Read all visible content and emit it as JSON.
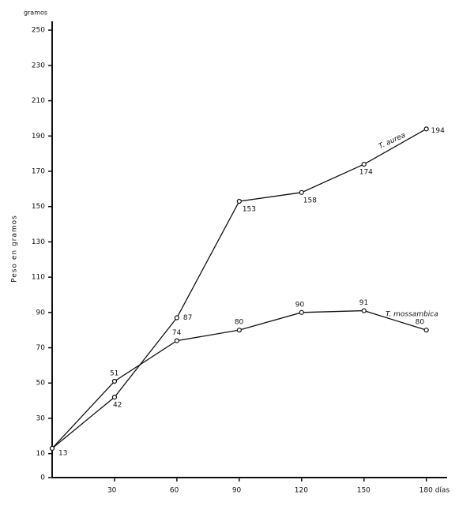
{
  "chart_data": {
    "type": "line",
    "y_label": "Peso en gramos",
    "y_unit_label": "gramos",
    "x": [
      0,
      30,
      60,
      90,
      120,
      150,
      180
    ],
    "series": [
      {
        "name": "T. aurea",
        "color": "#111111",
        "values": [
          13,
          42,
          87,
          153,
          158,
          174,
          194
        ]
      },
      {
        "name": "T. mossambica",
        "color": "#111111",
        "values": [
          13,
          51,
          74,
          80,
          90,
          91,
          80
        ]
      }
    ],
    "xlim": [
      0,
      190
    ],
    "xticks": [
      30,
      60,
      90,
      120,
      150,
      {
        "value": 180,
        "label": "180 días"
      }
    ],
    "ylim": [
      0,
      255
    ],
    "yticks": [
      0,
      10,
      30,
      50,
      70,
      90,
      110,
      130,
      150,
      170,
      190,
      210,
      230,
      250
    ]
  }
}
